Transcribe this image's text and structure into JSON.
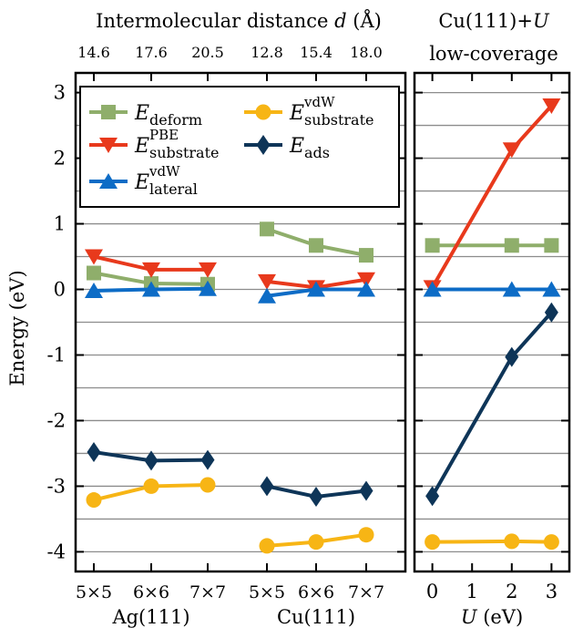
{
  "top_titles": {
    "left": "Intermolecular distance d (Å)",
    "left_pre": "Intermolecular distance ",
    "left_var": "d",
    "left_post": " (Å)",
    "right_line1_pre": "Cu(111)+",
    "right_line1_var": "U",
    "right_line2": "low-coverage"
  },
  "ylabel": "Energy (eV)",
  "legend": [
    {
      "key": "deform",
      "base": "E",
      "sub": "deform",
      "sup": "",
      "color": "#8fae6b",
      "marker": "square"
    },
    {
      "key": "vdw_sub",
      "base": "E",
      "sub": "substrate",
      "sup": "vdW",
      "color": "#f7b515",
      "marker": "circle"
    },
    {
      "key": "pbe_sub",
      "base": "E",
      "sub": "substrate",
      "sup": "PBE",
      "color": "#e8391c",
      "marker": "triangle-down"
    },
    {
      "key": "ads",
      "base": "E",
      "sub": "ads",
      "sup": "",
      "color": "#0e3558",
      "marker": "diamond"
    },
    {
      "key": "vdw_lat",
      "base": "E",
      "sub": "lateral",
      "sup": "vdW",
      "color": "#0d6cc6",
      "marker": "triangle-up"
    }
  ],
  "chart_data": [
    {
      "type": "line",
      "panel": "left",
      "categories": [
        "5×5",
        "6×6",
        "7×7",
        "5×5",
        "6×6",
        "7×7"
      ],
      "group_labels": [
        "Ag(111)",
        "Cu(111)"
      ],
      "top_tick_labels": [
        "14.6",
        "17.6",
        "20.5",
        "12.8",
        "15.4",
        "18.0"
      ],
      "ylim": [
        -4.3,
        3.3
      ],
      "yticks": [
        3,
        2,
        1,
        0,
        -1,
        -2,
        -3,
        -4
      ],
      "ytick_labels": [
        "3",
        "2",
        "1",
        "0",
        "-1",
        "-2",
        "-3",
        "-4"
      ],
      "grid": true,
      "legend_position": "top-left",
      "series": [
        {
          "key": "deform",
          "groups": [
            [
              0.25,
              0.09,
              0.08
            ],
            [
              0.92,
              0.67,
              0.52
            ]
          ]
        },
        {
          "key": "pbe_sub",
          "groups": [
            [
              0.5,
              0.3,
              0.3
            ],
            [
              0.12,
              0.03,
              0.15
            ]
          ]
        },
        {
          "key": "vdw_lat",
          "groups": [
            [
              -0.02,
              0.0,
              0.01
            ],
            [
              -0.1,
              0.0,
              0.0
            ]
          ]
        },
        {
          "key": "ads",
          "groups": [
            [
              -2.48,
              -2.61,
              -2.6
            ],
            [
              -3.0,
              -3.16,
              -3.07
            ]
          ]
        },
        {
          "key": "vdw_sub",
          "groups": [
            [
              -3.21,
              -3.0,
              -2.98
            ],
            [
              -3.91,
              -3.85,
              -3.74
            ]
          ]
        }
      ]
    },
    {
      "type": "line",
      "panel": "right",
      "x": [
        0,
        2,
        3
      ],
      "xticks": [
        0,
        1,
        2,
        3
      ],
      "xtick_labels": [
        "0",
        "1",
        "2",
        "3"
      ],
      "xlim": [
        -0.45,
        3.45
      ],
      "xlabel_var": "U",
      "xlabel_post": " (eV)",
      "ylim": [
        -4.3,
        3.3
      ],
      "grid": true,
      "series": [
        {
          "key": "deform",
          "values": [
            0.67,
            0.67,
            0.67
          ]
        },
        {
          "key": "pbe_sub",
          "values": [
            0.03,
            2.13,
            2.8
          ]
        },
        {
          "key": "vdw_lat",
          "values": [
            0.0,
            0.0,
            0.0
          ]
        },
        {
          "key": "ads",
          "values": [
            -3.15,
            -1.03,
            -0.35
          ]
        },
        {
          "key": "vdw_sub",
          "values": [
            -3.85,
            -3.84,
            -3.85
          ]
        }
      ]
    }
  ]
}
